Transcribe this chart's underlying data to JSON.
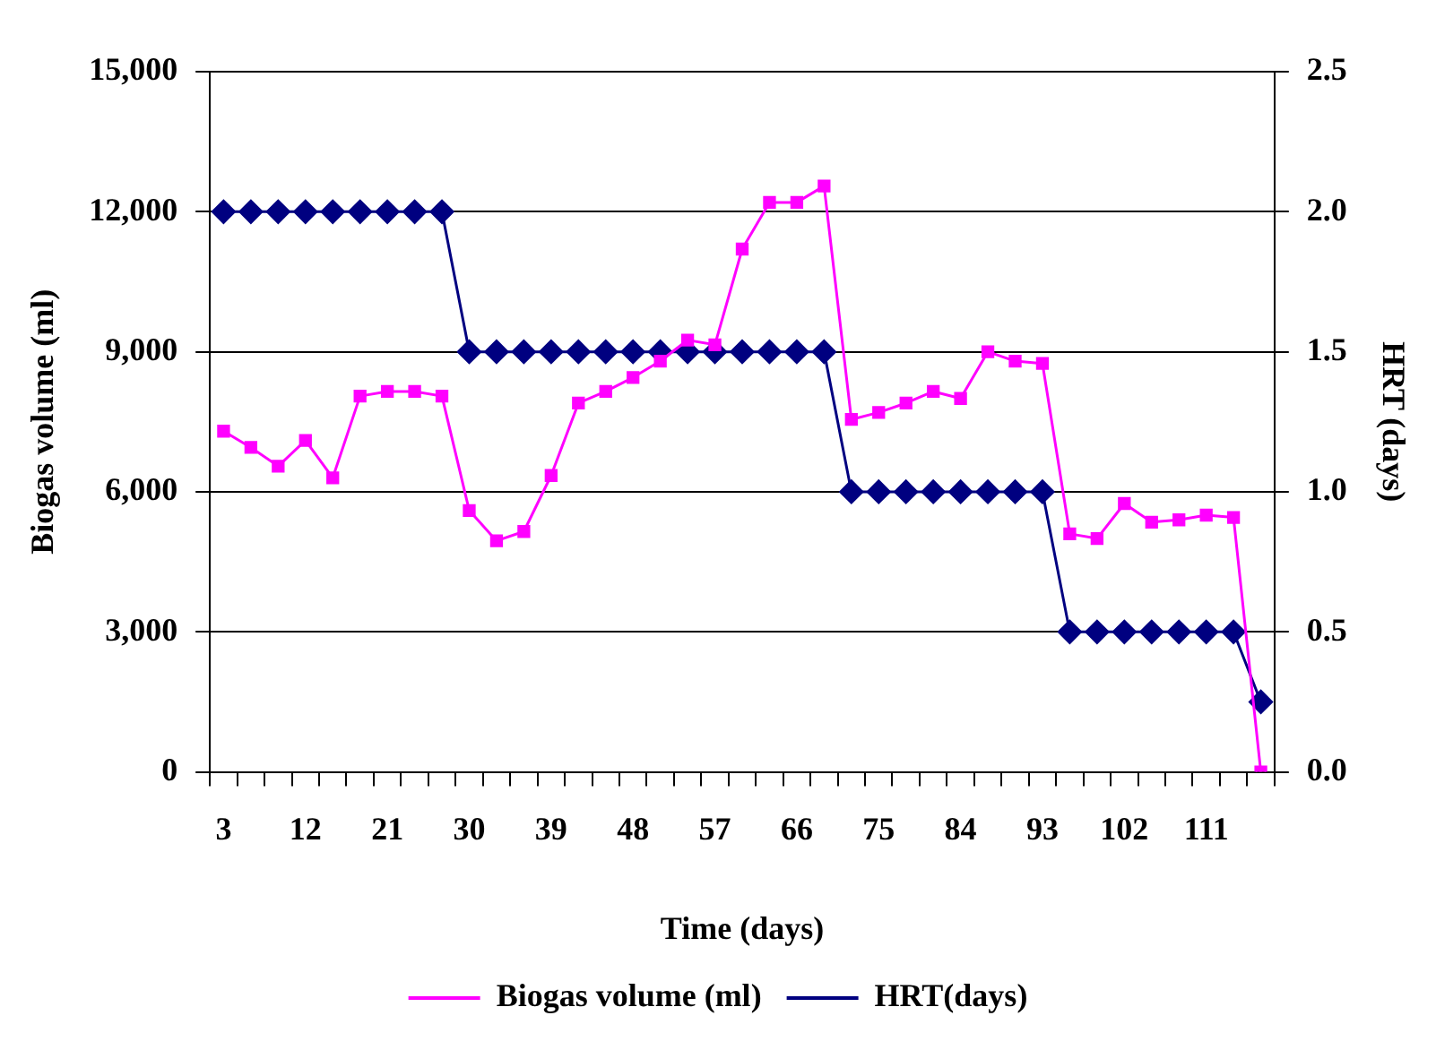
{
  "chart_data": {
    "type": "line",
    "xlabel": "Time (days)",
    "ylabel": "Biogas volume (ml)",
    "y2label": "HRT (days)",
    "categories": [
      "3",
      null,
      null,
      "12",
      null,
      null,
      "21",
      null,
      null,
      "30",
      null,
      null,
      "39",
      null,
      null,
      "48",
      null,
      null,
      "57",
      null,
      null,
      "66",
      null,
      null,
      "75",
      null,
      null,
      "84",
      null,
      null,
      "93",
      null,
      null,
      "102",
      null,
      null,
      "111",
      null,
      null
    ],
    "series": [
      {
        "name": "Biogas volume (ml)",
        "color": "#ff00ff",
        "marker": "square",
        "values": [
          7300,
          6950,
          6550,
          7100,
          6300,
          8050,
          8150,
          8150,
          8050,
          5600,
          4950,
          5150,
          6350,
          7900,
          8150,
          8450,
          8800,
          9250,
          9150,
          11200,
          12200,
          12200,
          12550,
          7550,
          7700,
          7900,
          8150,
          8000,
          9000,
          8800,
          8750,
          5100,
          5000,
          5750,
          5350,
          5400,
          5500,
          5450,
          0
        ]
      },
      {
        "name": "HRT(days)",
        "color": "#000080",
        "marker": "diamond",
        "axis": "y2",
        "values": [
          2,
          2,
          2,
          2,
          2,
          2,
          2,
          2,
          2,
          1.5,
          1.5,
          1.5,
          1.5,
          1.5,
          1.5,
          1.5,
          1.5,
          1.5,
          1.5,
          1.5,
          1.5,
          1.5,
          1.5,
          1,
          1,
          1,
          1,
          1,
          1,
          1,
          1,
          0.5,
          0.5,
          0.5,
          0.5,
          0.5,
          0.5,
          0.5,
          0.25
        ]
      }
    ],
    "ylim": [
      0,
      15000
    ],
    "yticks": [
      {
        "value": 0,
        "label": "0"
      },
      {
        "value": 3000,
        "label": "3,000"
      },
      {
        "value": 6000,
        "label": "6,000"
      },
      {
        "value": 9000,
        "label": "9,000"
      },
      {
        "value": 12000,
        "label": "12,000"
      },
      {
        "value": 15000,
        "label": "15,000"
      }
    ],
    "y2lim": [
      0,
      2.5
    ],
    "y2ticks": [
      {
        "value": 0,
        "label": "0.0"
      },
      {
        "value": 0.5,
        "label": "0.5"
      },
      {
        "value": 1,
        "label": "1.0"
      },
      {
        "value": 1.5,
        "label": "1.5"
      },
      {
        "value": 2,
        "label": "2.0"
      },
      {
        "value": 2.5,
        "label": "2.5"
      }
    ],
    "grid": "y",
    "legend": "bottom"
  }
}
